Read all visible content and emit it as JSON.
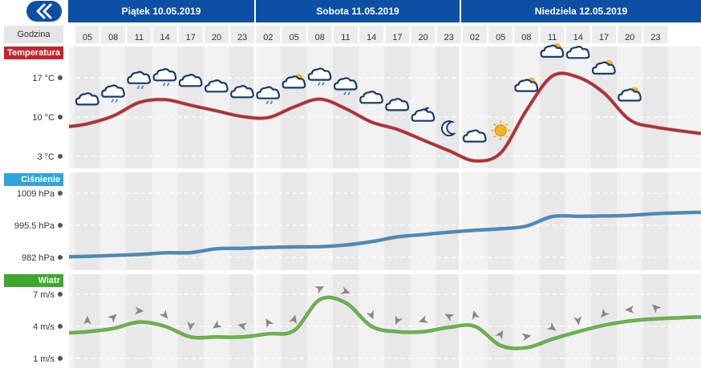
{
  "header": {
    "back_icon": "double-chevron-left-icon",
    "days": [
      "Piątek 10.05.2019",
      "Sobota 11.05.2019",
      "Niedziela 12.05.2019"
    ],
    "hour_label": "Godzina",
    "hours": [
      "05",
      "08",
      "11",
      "14",
      "17",
      "20",
      "23",
      "02",
      "05",
      "08",
      "11",
      "14",
      "17",
      "20",
      "23",
      "02",
      "05",
      "08",
      "11",
      "14",
      "17",
      "20",
      "23"
    ]
  },
  "colors": {
    "header_bg": "#0d4fa5",
    "temperature": "#c0262d",
    "pressure": "#3a8fc8",
    "wind": "#5fbe3a",
    "temperature_label_bg": "#c0262d",
    "pressure_label_bg": "#2ea6db",
    "wind_label_bg": "#3fa62f"
  },
  "chart_data": [
    {
      "type": "line",
      "title": "Temperatura",
      "ylabel": "",
      "y_ticks": [
        "17 °C",
        "10 °C",
        "3 °C"
      ],
      "y_tick_values": [
        17,
        10,
        3
      ],
      "ylim": [
        0,
        22
      ],
      "x": [
        "05",
        "08",
        "11",
        "14",
        "17",
        "20",
        "23",
        "02",
        "05",
        "08",
        "11",
        "14",
        "17",
        "20",
        "23",
        "02",
        "05",
        "08",
        "11",
        "14",
        "17",
        "20",
        "23"
      ],
      "series": [
        {
          "values": [
            8.8,
            10.2,
            12.6,
            13.1,
            12.1,
            11.1,
            10.1,
            9.9,
            11.8,
            13.2,
            11.5,
            9.1,
            7.8,
            5.9,
            4.0,
            2.2,
            3.6,
            11.2,
            17.3,
            17.1,
            14.3,
            9.5,
            8.2
          ]
        }
      ],
      "weather_icons": [
        "cloud-icon",
        "cloud-light-rain-icon",
        "cloud-light-rain-icon",
        "cloud-light-rain-icon",
        "cloud-icon",
        "cloud-icon",
        "cloud-icon",
        "cloud-light-rain-icon",
        "partly-sunny-cloud-icon",
        "cloud-light-rain-icon",
        "cloud-light-rain-icon",
        "cloud-icon",
        "cloud-icon",
        "partly-cloudy-night-icon",
        "crescent-moon-icon",
        "cloud-icon",
        "sun-icon",
        "partly-sunny-cloud-icon",
        "partly-sunny-cloud-icon",
        "cloud-icon",
        "partly-sunny-cloud-icon",
        "partly-sunny-cloud-icon"
      ]
    },
    {
      "type": "line",
      "title": "Ciśnienie",
      "ylabel": "",
      "y_ticks": [
        "1009 hPa",
        "995.5 hPa",
        "982 hPa"
      ],
      "y_tick_values": [
        1009,
        995.5,
        982
      ],
      "ylim": [
        977,
        1013
      ],
      "x": [
        "05",
        "08",
        "11",
        "14",
        "17",
        "20",
        "23",
        "02",
        "05",
        "08",
        "11",
        "14",
        "17",
        "20",
        "23",
        "02",
        "05",
        "08",
        "11",
        "14",
        "17",
        "20",
        "23"
      ],
      "series": [
        {
          "values": [
            982.4,
            982.8,
            983.2,
            983.9,
            984.0,
            985.6,
            985.8,
            986.2,
            986.4,
            986.5,
            987.2,
            988.6,
            990.6,
            991.6,
            992.6,
            993.4,
            994.0,
            995.2,
            999.2,
            999.3,
            999.4,
            999.7,
            1000.4
          ]
        }
      ]
    },
    {
      "type": "line",
      "title": "Wiatr",
      "ylabel": "",
      "y_ticks": [
        "7 m/s",
        "4 m/s",
        "1 m/s"
      ],
      "y_tick_values": [
        7,
        4,
        1
      ],
      "ylim": [
        0,
        8.2
      ],
      "x": [
        "05",
        "08",
        "11",
        "14",
        "17",
        "20",
        "23",
        "02",
        "05",
        "08",
        "11",
        "14",
        "17",
        "20",
        "23",
        "02",
        "05",
        "08",
        "11",
        "14",
        "17",
        "20",
        "23"
      ],
      "series": [
        {
          "values": [
            3.5,
            3.8,
            4.4,
            4.0,
            3.0,
            3.0,
            3.0,
            3.3,
            3.6,
            6.5,
            6.2,
            4.0,
            3.5,
            3.5,
            3.9,
            4.0,
            2.2,
            2.0,
            2.8,
            3.5,
            4.1,
            4.5,
            4.7
          ]
        }
      ],
      "direction_marker": "wind-direction-arrow-icon"
    }
  ]
}
